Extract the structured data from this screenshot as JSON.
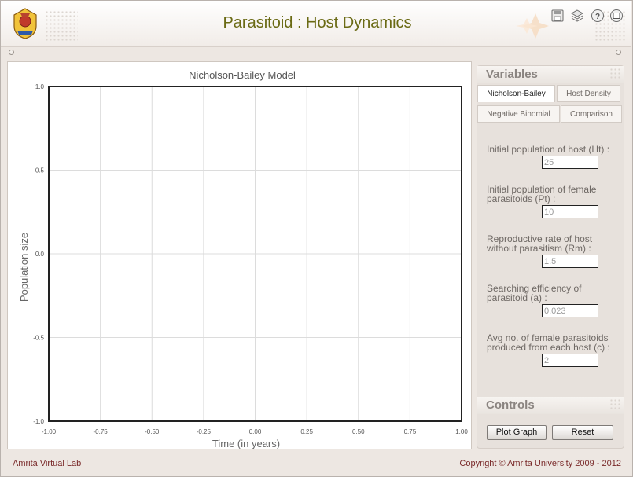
{
  "header": {
    "title": "Parasitoid : Host Dynamics",
    "icons": [
      "save-icon",
      "layers-icon",
      "help-icon",
      "fullscreen-icon"
    ]
  },
  "chart_data": {
    "type": "line",
    "title": "Nicholson-Bailey Model",
    "xlabel": "Time (in years)",
    "ylabel": "Population size",
    "xlim": [
      -1.0,
      1.0
    ],
    "ylim": [
      -1.0,
      1.0
    ],
    "x_ticks": [
      "-1.00",
      "-0.75",
      "-0.50",
      "-0.25",
      "0.00",
      "0.25",
      "0.50",
      "0.75",
      "1.00"
    ],
    "y_ticks": [
      "1.0",
      "0.5",
      "0.0",
      "-0.5",
      "-1.0"
    ],
    "grid": true,
    "series": []
  },
  "variables": {
    "heading": "Variables",
    "tabs": [
      {
        "label": "Nicholson-Bailey",
        "active": true
      },
      {
        "label": "Host Density",
        "active": false
      },
      {
        "label": "Negative Binomial",
        "active": false
      },
      {
        "label": "Comparison",
        "active": false
      }
    ],
    "fields": [
      {
        "label": "Initial population of host (Ht) :",
        "value": "25"
      },
      {
        "label": "Initial population of female parasitoids (Pt) :",
        "value": "10"
      },
      {
        "label": "Reproductive rate of host without parasitism (Rm) :",
        "value": "1.5"
      },
      {
        "label": "Searching efficiency of parasitoid (a) :",
        "value": "0.023"
      },
      {
        "label": "Avg no. of female parasitoids produced from each host (c) :",
        "value": "2"
      }
    ]
  },
  "controls": {
    "heading": "Controls",
    "plot_label": "Plot Graph",
    "reset_label": "Reset"
  },
  "footer": {
    "left": "Amrita Virtual Lab",
    "right": "Copyright © Amrita University 2009 - 2012"
  },
  "colors": {
    "title": "#6a6a14",
    "footer_text": "#7a2a2a",
    "panel_bg": "#e7e1dc"
  }
}
